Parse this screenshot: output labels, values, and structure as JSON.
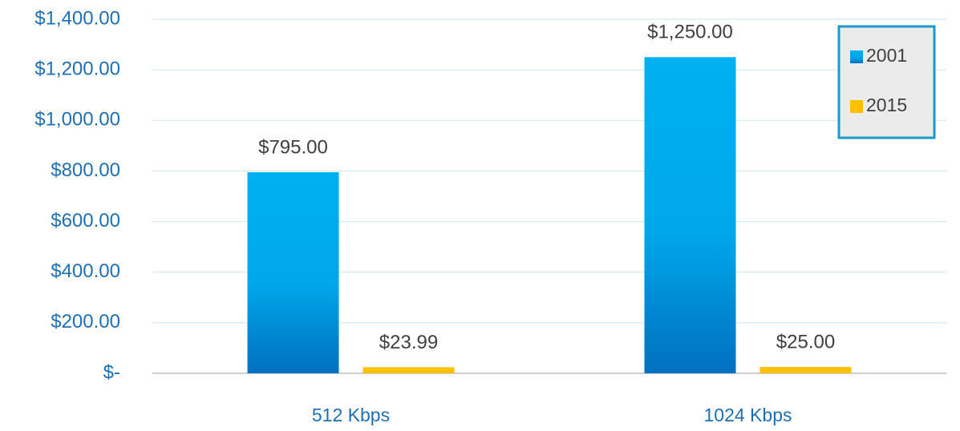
{
  "chart_data": {
    "type": "bar",
    "categories": [
      "512 Kbps",
      "1024 Kbps"
    ],
    "series": [
      {
        "name": "2001",
        "color": "#00b0f0",
        "values": [
          795,
          1250
        ],
        "value_labels": [
          "$795.00",
          "$1,250.00"
        ]
      },
      {
        "name": "2015",
        "color": "#ffc000",
        "values": [
          23.99,
          25
        ],
        "value_labels": [
          "$23.99",
          "$25.00"
        ]
      }
    ],
    "ylim": [
      0,
      1400
    ],
    "yticks": [
      {
        "value": 0,
        "label": "$-"
      },
      {
        "value": 200,
        "label": "$200.00"
      },
      {
        "value": 400,
        "label": "$400.00"
      },
      {
        "value": 600,
        "label": "$600.00"
      },
      {
        "value": 800,
        "label": "$800.00"
      },
      {
        "value": 1000,
        "label": "$1,000.00"
      },
      {
        "value": 1200,
        "label": "$1,200.00"
      },
      {
        "value": 1400,
        "label": "$1,400.00"
      }
    ],
    "grid": true,
    "legend": "top-right"
  }
}
